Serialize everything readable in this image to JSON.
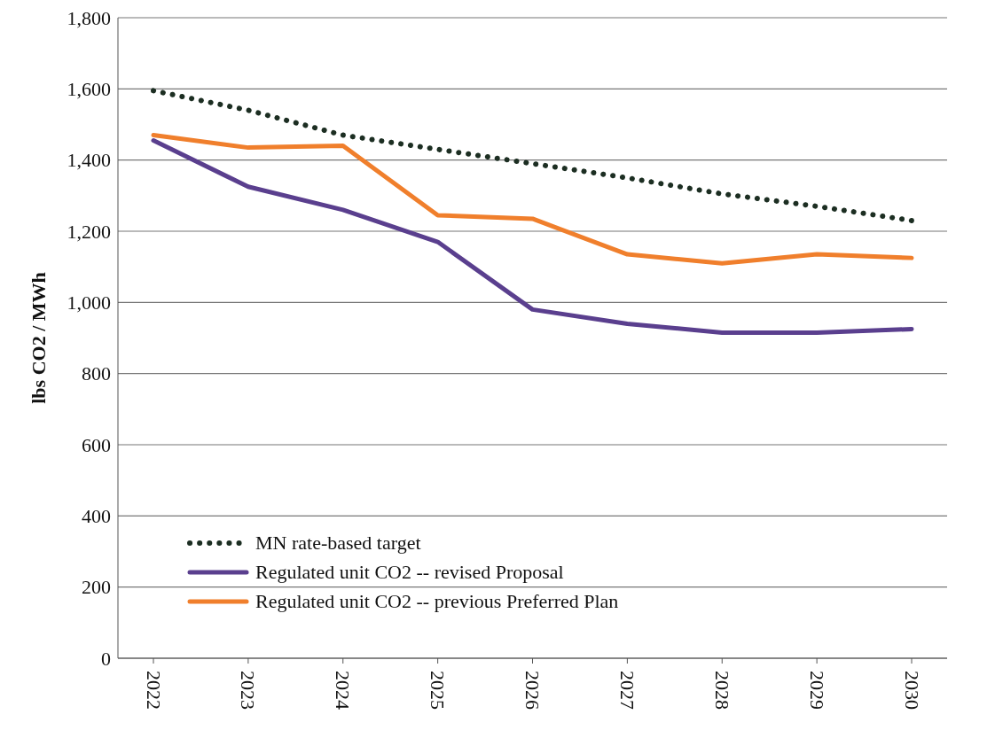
{
  "chart_data": {
    "type": "line",
    "ylabel": "lbs CO2 / MWh",
    "categories": [
      "2022",
      "2023",
      "2024",
      "2025",
      "2026",
      "2027",
      "2028",
      "2029",
      "2030"
    ],
    "series": [
      {
        "name": "MN rate-based target",
        "color": "#1c2e22",
        "line_style": "dotted",
        "values": [
          1595,
          1540,
          1470,
          1430,
          1390,
          1350,
          1305,
          1270,
          1230
        ]
      },
      {
        "name": "Regulated unit CO2 -- revised Proposal",
        "color": "#5a3f8e",
        "line_style": "solid",
        "values": [
          1455,
          1325,
          1260,
          1170,
          980,
          940,
          915,
          915,
          925
        ]
      },
      {
        "name": "Regulated unit CO2 -- previous Preferred Plan",
        "color": "#f07f2c",
        "line_style": "solid",
        "values": [
          1470,
          1435,
          1440,
          1245,
          1235,
          1135,
          1110,
          1135,
          1125
        ]
      }
    ],
    "ylim": [
      0,
      1800
    ],
    "yticks": [
      0,
      200,
      400,
      600,
      800,
      {
        "value": 1000,
        "label": "1,000"
      },
      {
        "value": 1200,
        "label": "1,200"
      },
      {
        "value": 1400,
        "label": "1,400"
      },
      {
        "value": 1600,
        "label": "1,600"
      },
      {
        "value": 1800,
        "label": "1,800"
      }
    ],
    "grid": "y",
    "legend": "bottom left",
    "marker": "none"
  }
}
